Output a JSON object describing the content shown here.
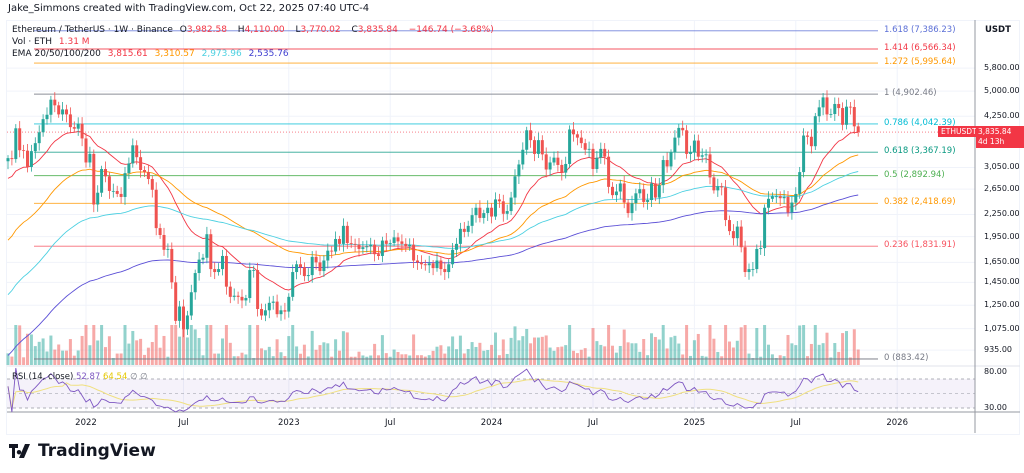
{
  "header": {
    "creator": "Jake_Simmons created with TradingView.com, Oct 22, 2025 07:40 UTC-4"
  },
  "legend": {
    "symbol": "Ethereum / TetherUS · 1W · Binance",
    "o_label": "O",
    "open": "3,982.58",
    "h_label": "H",
    "high": "4,110.00",
    "l_label": "L",
    "low": "3,770.02",
    "c_label": "C",
    "close": "3,835.84",
    "change": "−146.74 (−3.68%)",
    "vol_label": "Vol · ETH",
    "vol_value": "1.31 M",
    "ema_label": "EMA 20/50/100/200",
    "ema_values": [
      "3,815.61",
      "3,310.57",
      "2,973.96",
      "2,535.76"
    ]
  },
  "rsi": {
    "label": "RSI (14, close)",
    "value": "52.87",
    "ma_value": "64.54",
    "empty1": "∅",
    "empty2": "∅"
  },
  "price_axis": {
    "currency": "USDT",
    "ticks": [
      {
        "v": 5800,
        "t": "5,800.00"
      },
      {
        "v": 5000,
        "t": "5,000.00"
      },
      {
        "v": 4250,
        "t": "4,250.00"
      },
      {
        "v": 3050,
        "t": "3,050.00"
      },
      {
        "v": 2650,
        "t": "2,650.00"
      },
      {
        "v": 2250,
        "t": "2,250.00"
      },
      {
        "v": 1950,
        "t": "1,950.00"
      },
      {
        "v": 1650,
        "t": "1,650.00"
      },
      {
        "v": 1450,
        "t": "1,450.00"
      },
      {
        "v": 1250,
        "t": "1,250.00"
      },
      {
        "v": 1075,
        "t": "1,075.00"
      },
      {
        "v": 935,
        "t": "935.00"
      }
    ],
    "rsi_ticks": [
      {
        "v": 80,
        "t": "80.00"
      },
      {
        "v": 30,
        "t": "30.00"
      }
    ],
    "current": {
      "symbol": "ETHUSDT",
      "price": "3,835.84",
      "countdown": "4d 13h",
      "value": 3835.84
    }
  },
  "time_axis": {
    "ticks": [
      {
        "t": "2022",
        "week": 20
      },
      {
        "t": "Jul",
        "week": 45
      },
      {
        "t": "2023",
        "week": 72
      },
      {
        "t": "Jul",
        "week": 98
      },
      {
        "t": "2024",
        "week": 124
      },
      {
        "t": "Jul",
        "week": 150
      },
      {
        "t": "2025",
        "week": 176
      },
      {
        "t": "Jul",
        "week": 202
      },
      {
        "t": "2026",
        "week": 228
      }
    ]
  },
  "fib_levels": [
    {
      "label": "1.618 (7,386.23)",
      "price": 7386.23,
      "color": "#5b6fd6"
    },
    {
      "label": "1.414 (6,566.34)",
      "price": 6566.34,
      "color": "#f23645"
    },
    {
      "label": "1.272 (5,995.64)",
      "price": 5995.64,
      "color": "#ff9800"
    },
    {
      "label": "1 (4,902.46)",
      "price": 4902.46,
      "color": "#787b86"
    },
    {
      "label": "0.786 (4,042.39)",
      "price": 4042.39,
      "color": "#00bcd4"
    },
    {
      "label": "0.618 (3,367.19)",
      "price": 3367.19,
      "color": "#089981"
    },
    {
      "label": "0.5 (2,892.94)",
      "price": 2892.94,
      "color": "#4caf50"
    },
    {
      "label": "0.382 (2,418.69)",
      "price": 2418.69,
      "color": "#ff9800"
    },
    {
      "label": "0.236 (1,831.91)",
      "price": 1831.91,
      "color": "#f7525f"
    },
    {
      "label": "0 (883.42)",
      "price": 883.42,
      "color": "#787b86"
    }
  ],
  "colors": {
    "up": "#26a69a",
    "down": "#ef5350",
    "ema20": "#f23645",
    "ema50": "#ff9800",
    "ema100": "#4dd0e1",
    "ema200": "#5b4fd6",
    "rsi": "#7e57c2",
    "rsi_ma": "#f0e080"
  },
  "brand": {
    "name": "TradingView"
  },
  "chart_data": {
    "type": "candlestick",
    "title": "Ethereum / TetherUS · 1W · Binance",
    "scale": "log",
    "ylim": [
      850,
      8000
    ],
    "first_week": "2021-08-16",
    "ema_periods": [
      20,
      50,
      100,
      200
    ],
    "ema_start": [
      2800,
      1850,
      1300,
      880
    ],
    "closes": [
      3240,
      3220,
      3930,
      3410,
      3400,
      3060,
      3390,
      3570,
      3830,
      4170,
      4290,
      4730,
      4560,
      4300,
      4440,
      4300,
      3960,
      3920,
      4050,
      3680,
      3150,
      3330,
      2400,
      2590,
      3020,
      2880,
      2620,
      2620,
      2570,
      2520,
      2940,
      3130,
      3520,
      3260,
      3000,
      2960,
      2830,
      2640,
      2060,
      1970,
      1790,
      1800,
      1450,
      1130,
      1240,
      1070,
      1170,
      1360,
      1540,
      1680,
      1700,
      1980,
      1580,
      1550,
      1580,
      1720,
      1410,
      1320,
      1330,
      1320,
      1290,
      1310,
      1570,
      1570,
      1220,
      1170,
      1210,
      1270,
      1280,
      1180,
      1210,
      1200,
      1320,
      1550,
      1630,
      1600,
      1510,
      1520,
      1710,
      1650,
      1560,
      1670,
      1780,
      1770,
      1920,
      1860,
      2090,
      1870,
      1860,
      1850,
      1800,
      1820,
      1830,
      1850,
      1740,
      1720,
      1900,
      1860,
      1870,
      1940,
      1890,
      1860,
      1830,
      1850,
      1670,
      1650,
      1630,
      1620,
      1640,
      1590,
      1670,
      1580,
      1550,
      1630,
      1790,
      1860,
      2050,
      2010,
      2090,
      2240,
      2350,
      2200,
      2270,
      2350,
      2220,
      2480,
      2450,
      2260,
      2300,
      2510,
      2880,
      3110,
      3420,
      3880,
      3640,
      3330,
      3640,
      3320,
      3010,
      3150,
      3250,
      3100,
      2950,
      3120,
      3900,
      3780,
      3700,
      3570,
      3420,
      3440,
      3020,
      3250,
      3440,
      3270,
      2690,
      2550,
      2610,
      2750,
      2430,
      2270,
      2420,
      2580,
      2650,
      2440,
      2470,
      2750,
      2510,
      2720,
      3200,
      3070,
      3360,
      3700,
      3940,
      3880,
      3330,
      3360,
      3630,
      3270,
      3300,
      3320,
      2860,
      2630,
      2700,
      2680,
      2170,
      2020,
      1930,
      2080,
      1820,
      1550,
      1580,
      1580,
      1800,
      1810,
      2350,
      2490,
      2530,
      2530,
      2500,
      2520,
      2280,
      2430,
      2570,
      2960,
      3750,
      3720,
      3500,
      4250,
      4500,
      4800,
      4300,
      4310,
      4600,
      4480,
      4020,
      4520,
      4510,
      3980,
      3835.84
    ]
  }
}
